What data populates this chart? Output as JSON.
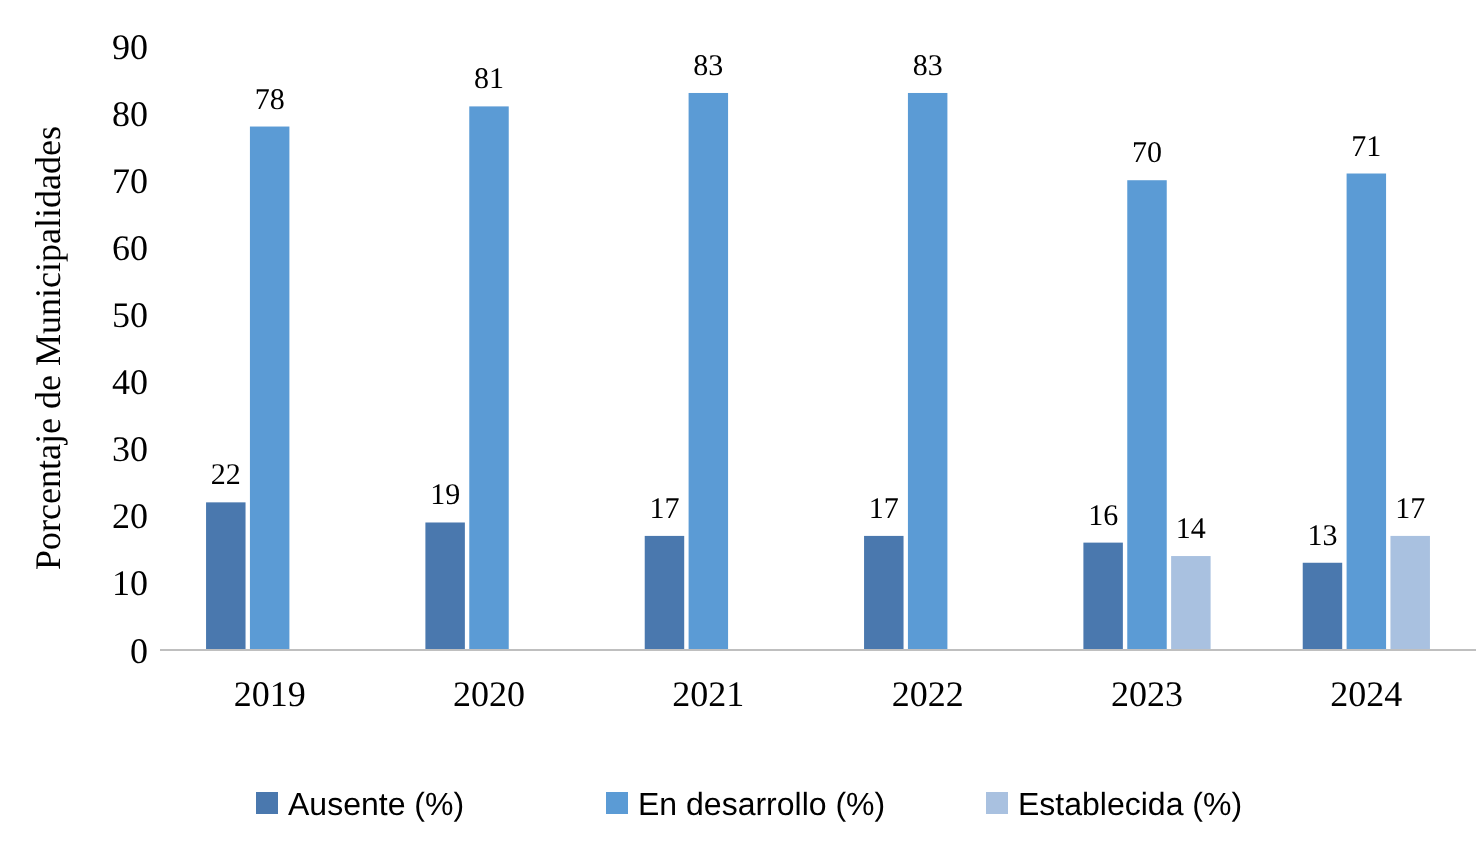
{
  "chart_data": {
    "type": "bar",
    "ylabel": "Porcentaje de Municipalidades",
    "categories": [
      "2019",
      "2020",
      "2021",
      "2022",
      "2023",
      "2024"
    ],
    "series": [
      {
        "name": "Ausente (%)",
        "color": "#4a78ae",
        "values": [
          22,
          19,
          17,
          17,
          16,
          13
        ]
      },
      {
        "name": "En desarrollo (%)",
        "color": "#5b9bd5",
        "values": [
          78,
          81,
          83,
          83,
          70,
          71
        ]
      },
      {
        "name": "Establecida (%)",
        "color": "#a9c1e0",
        "values": [
          null,
          null,
          null,
          null,
          14,
          17
        ]
      }
    ],
    "ylim": [
      0,
      90
    ],
    "yticks": [
      0,
      10,
      20,
      30,
      40,
      50,
      60,
      70,
      80,
      90
    ],
    "data_labels": true,
    "grid": false,
    "legend": "bottom"
  }
}
